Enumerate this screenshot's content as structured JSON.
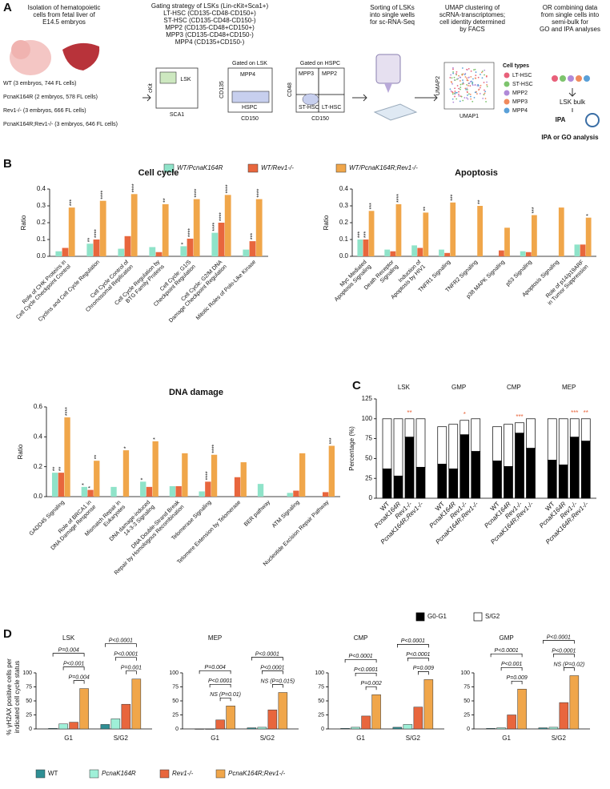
{
  "labels": [
    "A",
    "B",
    "C",
    "D"
  ],
  "panel_a": {
    "isolation": [
      "Isolation of hematopoietic",
      "cells from fetal liver of",
      "E14.5 embryos"
    ],
    "gating": [
      "Gating strategy of LSKs (Lin-cKit+Sca1+)",
      "LT-HSC (CD135-CD48-CD150+)",
      "ST-HSC (CD135-CD48-CD150-)",
      "MPP2 (CD135-CD48+CD150+)",
      "MPP3 (CD135-CD48+CD150-)",
      "MPP4 (CD135+CD150-)"
    ],
    "sorting": [
      "Sorting of LSKs",
      "into single wells",
      "for sc-RNA-Seq"
    ],
    "umap_text": [
      "UMAP clustering of",
      "scRNA-transcriptomes;",
      "cell identity determined",
      "by FACS"
    ],
    "bulk_text": [
      "OR combining data",
      "from single cells into",
      "semi-bulk for",
      "GO and IPA analyses"
    ],
    "cohorts": [
      "WT (3 embryos, 744 FL cells)",
      "PcnaK164R (2 embryos, 578 FL cells)",
      "Rev1-/- (3 embryos, 666 FL cells)",
      "PcnaK164R;Rev1-/- (3 embryos, 646 FL cells)"
    ],
    "facs": {
      "plot1": {
        "y": "cKit",
        "x": "SCA1",
        "gate": "LSK"
      },
      "plot2": {
        "title": "Gated on LSK",
        "y": "CD135",
        "x": "CD150",
        "gates": [
          "MPP4",
          "HSPC"
        ]
      },
      "plot3": {
        "title": "Gated on HSPC",
        "y": "CD48",
        "x": "CD150",
        "gates": [
          "MPP3",
          "MPP2",
          "ST-HSC",
          "LT-HSC"
        ]
      }
    },
    "umap": {
      "x": "UMAP1",
      "y": "UMAP2",
      "legend_title": "Cell types",
      "legend": [
        {
          "name": "LT-HSC",
          "color": "#e8607a"
        },
        {
          "name": "ST-HSC",
          "color": "#7dc46d"
        },
        {
          "name": "MPP2",
          "color": "#b08ad8"
        },
        {
          "name": "MPP3",
          "color": "#f08a5d"
        },
        {
          "name": "MPP4",
          "color": "#5aa0d8"
        }
      ]
    },
    "bulk": {
      "label": "LSK bulk",
      "logo": "IPA",
      "caption": "IPA or GO analysis"
    }
  },
  "chart_data": [
    {
      "type": "bar-panels",
      "ylabel": "Ratio",
      "series": [
        {
          "name": "WT/PcnaK164R",
          "color": "#8fe3c9"
        },
        {
          "name": "WT/Rev1-/-",
          "color": "#e8663d"
        },
        {
          "name": "WT/PcnaK164R;Rev1-/-",
          "color": "#f0a64a"
        }
      ],
      "panels": [
        {
          "title": "Cell cycle",
          "categories": [
            [
              "Role of CHK Proteins in",
              "Cell Cycle Checkpoint Control"
            ],
            [
              "Cyclins and Cell Cycle Regulation"
            ],
            [
              "Cell Cycle Control of",
              "Chromosomal Replication"
            ],
            [
              "Cell Cycle Regulation by",
              "BTG Family Proteins"
            ],
            [
              "Cell Cycle: G1/S",
              "Checkpoint Regulation"
            ],
            [
              "Cell Cycle: G2/M DNA",
              "Damage Checkpoint Regulation"
            ],
            [
              "Mitotic Roles of Polo-Like Kinase"
            ]
          ],
          "values": [
            [
              0.03,
              0.075,
              0.045,
              0.055,
              0.06,
              0.14,
              0.04
            ],
            [
              0.05,
              0.1,
              0.12,
              0.025,
              0.105,
              0.2,
              0.09
            ],
            [
              0.29,
              0.33,
              0.37,
              0.31,
              0.34,
              0.365,
              0.34
            ]
          ],
          "annotations": [
            [
              null,
              "**",
              null,
              null,
              "*",
              "****",
              null
            ],
            [
              null,
              "****",
              null,
              null,
              "****",
              "****",
              "***"
            ],
            [
              "***",
              "****",
              "****",
              "**",
              "****",
              "****",
              "****"
            ]
          ],
          "ylim": [
            0,
            0.4
          ],
          "yticks": [
            {
              "value": 0,
              "label": "0.0"
            },
            0.1,
            0.2,
            0.3,
            0.4
          ]
        },
        {
          "title": "Apoptosis",
          "categories": [
            [
              "Myc Mediated",
              "Apoptosis Signaling"
            ],
            [
              "Death Receptor",
              "Signaling"
            ],
            [
              "Induction of",
              "Apoptosis by HIV1"
            ],
            [
              "TNFR1 Signaling"
            ],
            [
              "TNFR2 Signaling"
            ],
            [
              "p38 MAPK Signaling"
            ],
            [
              "p53 Signaling"
            ],
            [
              "Apoptosis Signaling"
            ],
            [
              "Role of p14/p19ARF",
              "in Tumor Suppression"
            ]
          ],
          "values": [
            [
              0.1,
              0.04,
              0.065,
              0.04,
              null,
              null,
              0.03,
              null,
              0.07
            ],
            [
              0.1,
              0.03,
              0.05,
              0.02,
              null,
              0.035,
              0.025,
              null,
              0.07
            ],
            [
              0.27,
              0.31,
              0.26,
              0.32,
              0.3,
              0.17,
              0.245,
              0.29,
              0.23
            ]
          ],
          "annotations": [
            [
              "***",
              null,
              null,
              null,
              null,
              null,
              null,
              null,
              null
            ],
            [
              "***",
              null,
              null,
              null,
              null,
              null,
              null,
              null,
              null
            ],
            [
              "***",
              "****",
              "**",
              "***",
              "**",
              null,
              "***",
              null,
              "*"
            ]
          ],
          "ylim": [
            0,
            0.4
          ],
          "yticks": [
            {
              "value": 0,
              "label": "0.0"
            },
            0.1,
            0.2,
            0.3,
            0.4
          ]
        },
        {
          "title": "DNA damage",
          "categories": [
            [
              "GADD45 Signaling"
            ],
            [
              "Role of BRCA1 in",
              "DNA Damage Response"
            ],
            [
              "Mismatch Repair in",
              "Eukaryotes"
            ],
            [
              "DNA damage-induced",
              "14-3-3 Signaling"
            ],
            [
              "DNA Double-Strand Break",
              "Repair by Homologous Recombination"
            ],
            [
              "Telomerase Signaling"
            ],
            [
              "Telomere Extension by Telomerase"
            ],
            [
              "BER pathway"
            ],
            [
              "ATM Signaling"
            ],
            [
              "Nucleotide Excision Repair Pathway"
            ]
          ],
          "values": [
            [
              0.16,
              0.065,
              0.065,
              0.1,
              0.07,
              0.035,
              null,
              0.085,
              0.025,
              null
            ],
            [
              0.16,
              0.045,
              null,
              0.065,
              0.07,
              0.1,
              0.13,
              null,
              0.04,
              0.03
            ],
            [
              0.53,
              0.24,
              0.31,
              0.37,
              0.29,
              0.28,
              0.23,
              null,
              0.29,
              0.34
            ]
          ],
          "annotations": [
            [
              "**",
              "*",
              null,
              "*",
              null,
              null,
              null,
              null,
              null,
              null
            ],
            [
              "**",
              "*",
              null,
              null,
              null,
              "****",
              null,
              null,
              null,
              null
            ],
            [
              "****",
              "**",
              "*",
              "*",
              null,
              "****",
              null,
              null,
              null,
              "***"
            ]
          ],
          "ylim": [
            0,
            0.6
          ],
          "yticks": [
            {
              "value": 0,
              "label": "0.0"
            },
            0.2,
            0.4,
            0.6
          ]
        }
      ]
    },
    {
      "type": "stacked-bar",
      "ylabel": "Percentage (%)",
      "groups": [
        "LSK",
        "GMP",
        "CMP",
        "MEP"
      ],
      "categories": [
        "WT",
        "PcnaK164R",
        "Rev1-/-",
        "PcnaK164R;Rev1-/-"
      ],
      "series": [
        {
          "name": "G0-G1",
          "color": "#000000",
          "values": [
            [
              37,
              28,
              77,
              39
            ],
            [
              43,
              37,
              80,
              59
            ],
            [
              47,
              40,
              82,
              63
            ],
            [
              48,
              42,
              77,
              72
            ]
          ]
        },
        {
          "name": "S/G2",
          "color": "#ffffff",
          "values": [
            [
              63,
              72,
              23,
              61
            ],
            [
              47,
              56,
              18,
              41
            ],
            [
              43,
              53,
              13,
              37
            ],
            [
              52,
              58,
              23,
              28
            ]
          ]
        }
      ],
      "annotations": [
        [
          null,
          null,
          "**",
          null
        ],
        [
          null,
          null,
          "*",
          null
        ],
        [
          null,
          null,
          "***",
          null
        ],
        [
          null,
          null,
          "***",
          "**"
        ]
      ],
      "annotation_color": "#e8663d",
      "ylim": [
        0,
        125
      ],
      "yticks": [
        0,
        25,
        50,
        75,
        100,
        125
      ]
    },
    {
      "type": "grouped-bar-panels",
      "ylabel": [
        "% γH2AX positive cells per",
        "indicated cell cycle status"
      ],
      "categories": [
        "G1",
        "S/G2"
      ],
      "series": [
        {
          "name": "WT",
          "color": "#2f8f94"
        },
        {
          "name": "PcnaK164R",
          "color": "#9ff0d8"
        },
        {
          "name": "Rev1-/-",
          "color": "#e8663d"
        },
        {
          "name": "PcnaK164R;Rev1-/-",
          "color": "#f0a64a"
        }
      ],
      "ylim": [
        0,
        100
      ],
      "yticks": [
        0,
        25,
        50,
        75,
        100
      ],
      "panels": [
        {
          "title": "LSK",
          "values": [
            [
              1,
              8
            ],
            [
              9,
              18
            ],
            [
              12,
              44
            ],
            [
              72,
              89
            ]
          ],
          "comparisons": [
            [
              "P=0.004",
              "P<0.001",
              "P=0.004"
            ],
            [
              "P<0.0001",
              "P<0.0001",
              "P=0.001"
            ]
          ]
        },
        {
          "title": "MEP",
          "values": [
            [
              0,
              2
            ],
            [
              0,
              3
            ],
            [
              16,
              34
            ],
            [
              41,
              65
            ]
          ],
          "comparisons": [
            [
              "P=0.004",
              "P<0.0001",
              "NS (P=0.01)"
            ],
            [
              "P<0.0001",
              "P<0.0001",
              "NS (P=0.015)"
            ]
          ]
        },
        {
          "title": "CMP",
          "values": [
            [
              1,
              3
            ],
            [
              3,
              8
            ],
            [
              23,
              39
            ],
            [
              61,
              88
            ]
          ],
          "comparisons": [
            [
              "P<0.0001",
              "P<0.0001",
              "P=0.002"
            ],
            [
              "P<0.0001",
              "P<0.0001",
              "P=0.009"
            ]
          ]
        },
        {
          "title": "GMP",
          "values": [
            [
              1,
              2
            ],
            [
              2,
              3
            ],
            [
              25,
              47
            ],
            [
              71,
              95
            ]
          ],
          "comparisons": [
            [
              "P<0.0001",
              "P<0.001",
              "P=0.009"
            ],
            [
              "P<0.0001",
              "P<0.0001",
              "NS (P=0.02)"
            ]
          ]
        }
      ]
    }
  ]
}
